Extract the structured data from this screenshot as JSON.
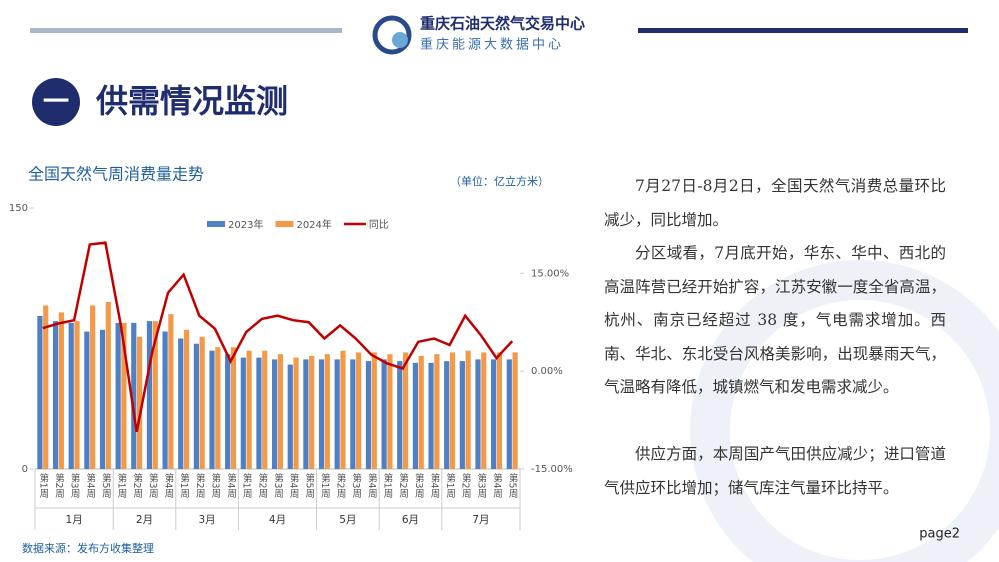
{
  "header": {
    "org": "重庆石油天然气交易中心",
    "sub": "重庆能源大数据中心"
  },
  "section": {
    "number": "一",
    "title": "供需情况监测"
  },
  "chart_data": {
    "type": "bar",
    "title": "全国天然气周消费量走势",
    "unit": "（单位：亿立方米）",
    "categories": [
      "第1周",
      "第2周",
      "第3周",
      "第4周",
      "第5周",
      "第1周",
      "第2周",
      "第3周",
      "第4周",
      "第1周",
      "第2周",
      "第3周",
      "第4周",
      "第1周",
      "第2周",
      "第3周",
      "第4周",
      "第5周",
      "第1周",
      "第2周",
      "第3周",
      "第4周",
      "第1周",
      "第2周",
      "第3周",
      "第4周",
      "第1周",
      "第2周",
      "第3周",
      "第4周",
      "第5周"
    ],
    "groups": [
      {
        "label": "1月",
        "count": 5
      },
      {
        "label": "2月",
        "count": 4
      },
      {
        "label": "3月",
        "count": 4
      },
      {
        "label": "4月",
        "count": 5
      },
      {
        "label": "5月",
        "count": 4
      },
      {
        "label": "6月",
        "count": 4
      },
      {
        "label": "7月",
        "count": 5
      }
    ],
    "series": [
      {
        "name": "2023年",
        "color": "#4f7fc4",
        "type": "bar",
        "values": [
          88,
          85,
          84,
          79,
          80,
          84,
          84,
          85,
          79,
          75,
          72,
          68,
          66,
          64,
          64,
          63,
          60,
          63,
          63,
          63,
          63,
          62,
          63,
          62,
          61,
          61,
          62,
          62,
          63,
          63,
          63
        ]
      },
      {
        "name": "2024年",
        "color": "#f39a4a",
        "type": "bar",
        "values": [
          94,
          90,
          85,
          94,
          96,
          84,
          76,
          85,
          89,
          80,
          76,
          70,
          70,
          68,
          68,
          66,
          64,
          65,
          66,
          68,
          67,
          67,
          66,
          67,
          65,
          66,
          67,
          68,
          67,
          67,
          67
        ]
      },
      {
        "name": "同比",
        "color": "#c00000",
        "type": "line",
        "axis": "y2",
        "values": [
          6.6,
          7.3,
          7.8,
          19.4,
          19.7,
          6.9,
          -9.3,
          3.0,
          12.0,
          14.8,
          8.5,
          6.5,
          1.5,
          6.0,
          8.0,
          8.5,
          7.8,
          7.5,
          5.0,
          7.0,
          5.0,
          2.5,
          1.2,
          0.4,
          4.5,
          5.0,
          4.0,
          8.5,
          5.5,
          2.0,
          4.6
        ]
      }
    ],
    "ylim": [
      0,
      150
    ],
    "yticks": [
      0,
      150
    ],
    "y2lim": [
      -15,
      25
    ],
    "y2ticks": [
      {
        "value": -15,
        "label": "-15.00%"
      },
      {
        "value": 0,
        "label": "0.00%"
      },
      {
        "value": 15,
        "label": "15.00%"
      }
    ],
    "grid": false,
    "legend": "top"
  },
  "source": "数据来源：发布方收集整理",
  "paragraphs": [
    "7月27日-8月2日，全国天然气消费总量环比减少，同比增加。",
    "分区域看，7月底开始，华东、华中、西北的高温阵营已经开始扩容，江苏安徽一度全省高温，杭州、南京已经超过 38 度，气电需求增加。西南、华北、东北受台风格美影响，出现暴雨天气，气温略有降低，城镇燃气和发电需求减少。",
    "供应方面，本周国产气田供应减少；进口管道气供应环比增加；储气库注气量环比持平。"
  ],
  "page": "page2"
}
